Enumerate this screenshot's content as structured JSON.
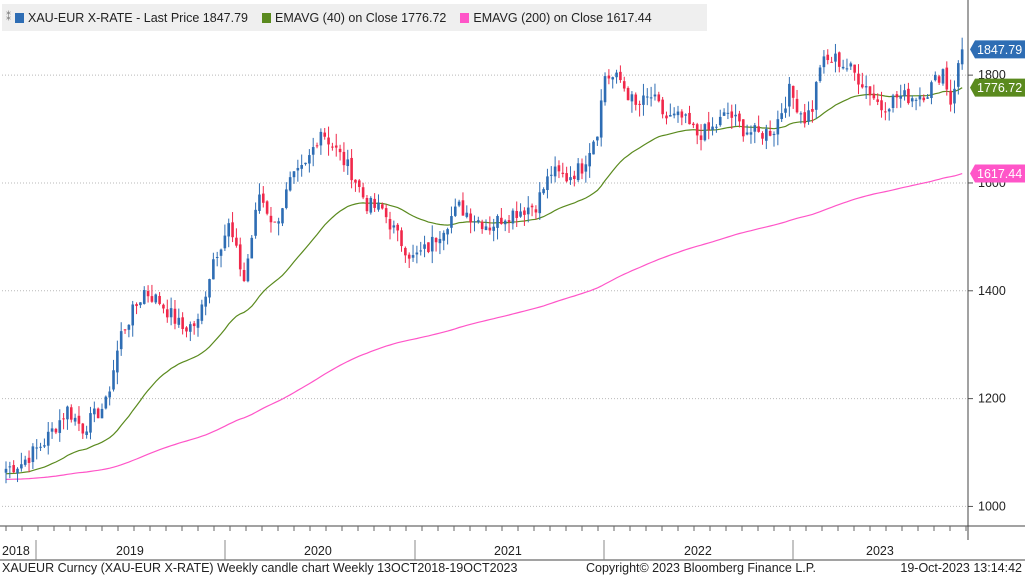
{
  "legend": {
    "items": [
      {
        "label": "XAU-EUR X-RATE - Last Price 1847.79",
        "color": "#2e6db4"
      },
      {
        "label": "EMAVG (40)   on Close 1776.72",
        "color": "#5a8a1e"
      },
      {
        "label": "EMAVG (200)   on Close 1617.44",
        "color": "#ff55c8"
      }
    ]
  },
  "footer": {
    "left": "XAUEUR Curncy (XAU-EUR X-RATE) Weekly candle chart  Weekly 13OCT2018-19OCT2023",
    "center": "Copyright© 2023 Bloomberg Finance L.P.",
    "right": "19-Oct-2023  13:14:42"
  },
  "chart_data": {
    "type": "candlestick",
    "title": "XAU-EUR X-RATE",
    "frequency": "Weekly",
    "ylim": [
      960,
      1880
    ],
    "y_ticks": [
      "1000",
      "1200",
      "1400",
      "1600",
      "1800"
    ],
    "x_tick_labels": [
      "2018",
      "2019",
      "2020",
      "2021",
      "2022",
      "2023"
    ],
    "last_values": {
      "price": "1847.79",
      "ema40": "1776.72",
      "ema200": "1617.44"
    },
    "colors": {
      "up": "#2e6db4",
      "down": "#f0284a",
      "ema40": "#5a8a1e",
      "ema200": "#ff55c8"
    },
    "close_anchors": [
      [
        0,
        1070
      ],
      [
        4,
        1080
      ],
      [
        10,
        1120
      ],
      [
        16,
        1180
      ],
      [
        20,
        1145
      ],
      [
        26,
        1190
      ],
      [
        30,
        1320
      ],
      [
        36,
        1400
      ],
      [
        40,
        1380
      ],
      [
        46,
        1330
      ],
      [
        50,
        1340
      ],
      [
        54,
        1460
      ],
      [
        58,
        1520
      ],
      [
        62,
        1420
      ],
      [
        66,
        1580
      ],
      [
        70,
        1520
      ],
      [
        74,
        1600
      ],
      [
        78,
        1630
      ],
      [
        82,
        1700
      ],
      [
        86,
        1660
      ],
      [
        90,
        1620
      ],
      [
        94,
        1560
      ],
      [
        98,
        1550
      ],
      [
        102,
        1500
      ],
      [
        106,
        1460
      ],
      [
        110,
        1480
      ],
      [
        114,
        1520
      ],
      [
        118,
        1555
      ],
      [
        122,
        1535
      ],
      [
        126,
        1520
      ],
      [
        130,
        1540
      ],
      [
        134,
        1550
      ],
      [
        138,
        1560
      ],
      [
        142,
        1620
      ],
      [
        146,
        1610
      ],
      [
        150,
        1630
      ],
      [
        154,
        1700
      ],
      [
        156,
        1800
      ],
      [
        160,
        1790
      ],
      [
        164,
        1740
      ],
      [
        168,
        1760
      ],
      [
        172,
        1720
      ],
      [
        176,
        1720
      ],
      [
        180,
        1690
      ],
      [
        184,
        1700
      ],
      [
        188,
        1730
      ],
      [
        192,
        1700
      ],
      [
        196,
        1690
      ],
      [
        200,
        1700
      ],
      [
        204,
        1770
      ],
      [
        208,
        1720
      ],
      [
        210,
        1740
      ],
      [
        212,
        1820
      ],
      [
        216,
        1830
      ],
      [
        220,
        1810
      ],
      [
        224,
        1780
      ],
      [
        228,
        1740
      ],
      [
        232,
        1760
      ],
      [
        236,
        1760
      ],
      [
        240,
        1770
      ],
      [
        244,
        1810
      ],
      [
        246,
        1750
      ],
      [
        249,
        1848
      ]
    ]
  }
}
